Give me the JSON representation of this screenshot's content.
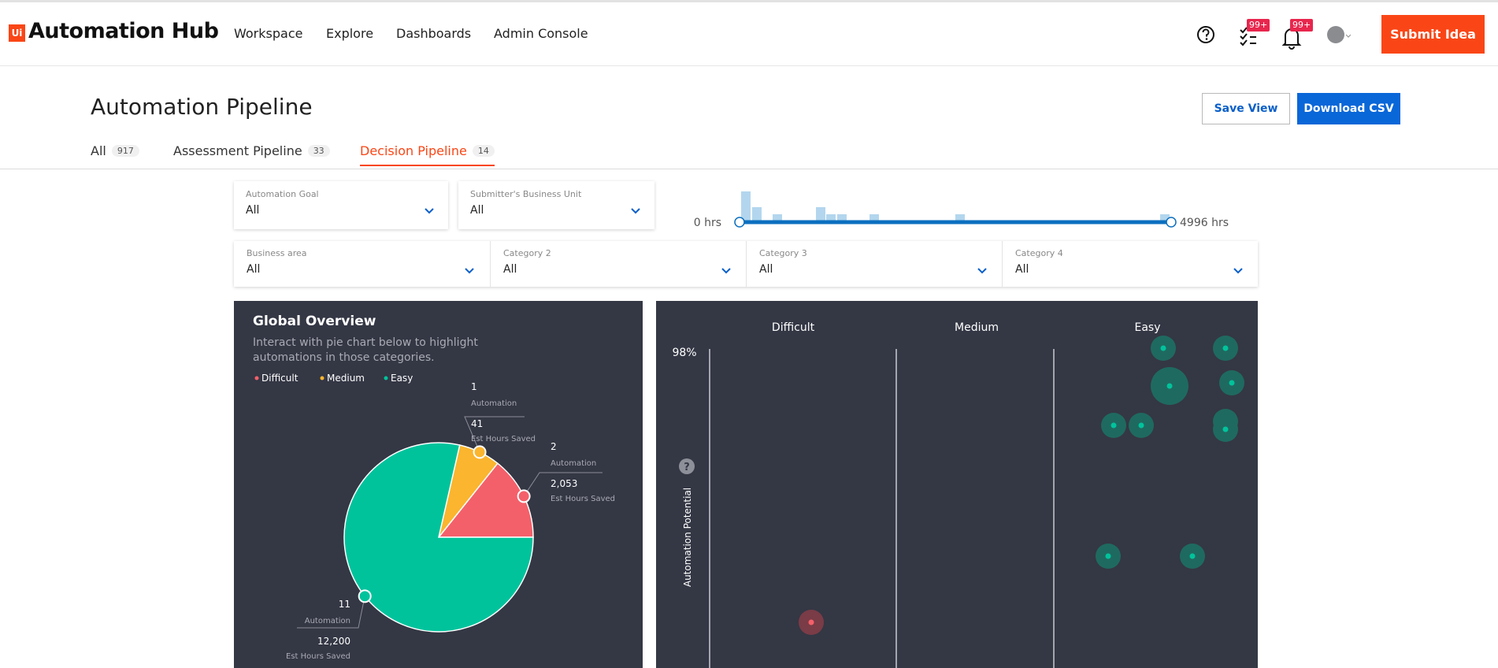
{
  "header": {
    "logo_badge": "Ui",
    "logo_text": "Automation Hub",
    "nav": [
      "Workspace",
      "Explore",
      "Dashboards",
      "Admin Console"
    ],
    "badges": [
      "99+",
      "99+"
    ],
    "submit_button": "Submit Idea"
  },
  "page": {
    "title": "Automation Pipeline",
    "save_view": "Save View",
    "download_csv": "Download CSV",
    "tabs": [
      {
        "label": "All",
        "count": "917"
      },
      {
        "label": "Assessment Pipeline",
        "count": "33"
      },
      {
        "label": "Decision Pipeline",
        "count": "14",
        "active": true
      }
    ]
  },
  "filters": {
    "top": [
      {
        "label": "Automation Goal",
        "value": "All"
      },
      {
        "label": "Submitter's Business Unit",
        "value": "All"
      }
    ],
    "range": {
      "min_label": "0 hrs",
      "max_label": "4996 hrs"
    },
    "categories": [
      {
        "label": "Business area",
        "value": "All"
      },
      {
        "label": "Category 2",
        "value": "All"
      },
      {
        "label": "Category 3",
        "value": "All"
      },
      {
        "label": "Category 4",
        "value": "All"
      }
    ]
  },
  "chart_data": {
    "type": "pie",
    "title": "Global Overview",
    "subtitle": [
      "Interact with pie chart below to highlight",
      "automations in those categories."
    ],
    "categories": [
      "Difficult",
      "Medium",
      "Easy"
    ],
    "colors": [
      "#f4606a",
      "#fbb52e",
      "#00c39c"
    ],
    "values": [
      2,
      1,
      11
    ],
    "count_label": "Automation",
    "hours_labels": [
      "2,053",
      "41",
      "12,200"
    ],
    "hours_caption": "Est Hours Saved"
  },
  "matrix": {
    "columns": [
      "Difficult",
      "Medium",
      "Easy"
    ],
    "y_top_label": "98%",
    "help_icon": "?",
    "y_axis_label": "Automation Potential"
  }
}
